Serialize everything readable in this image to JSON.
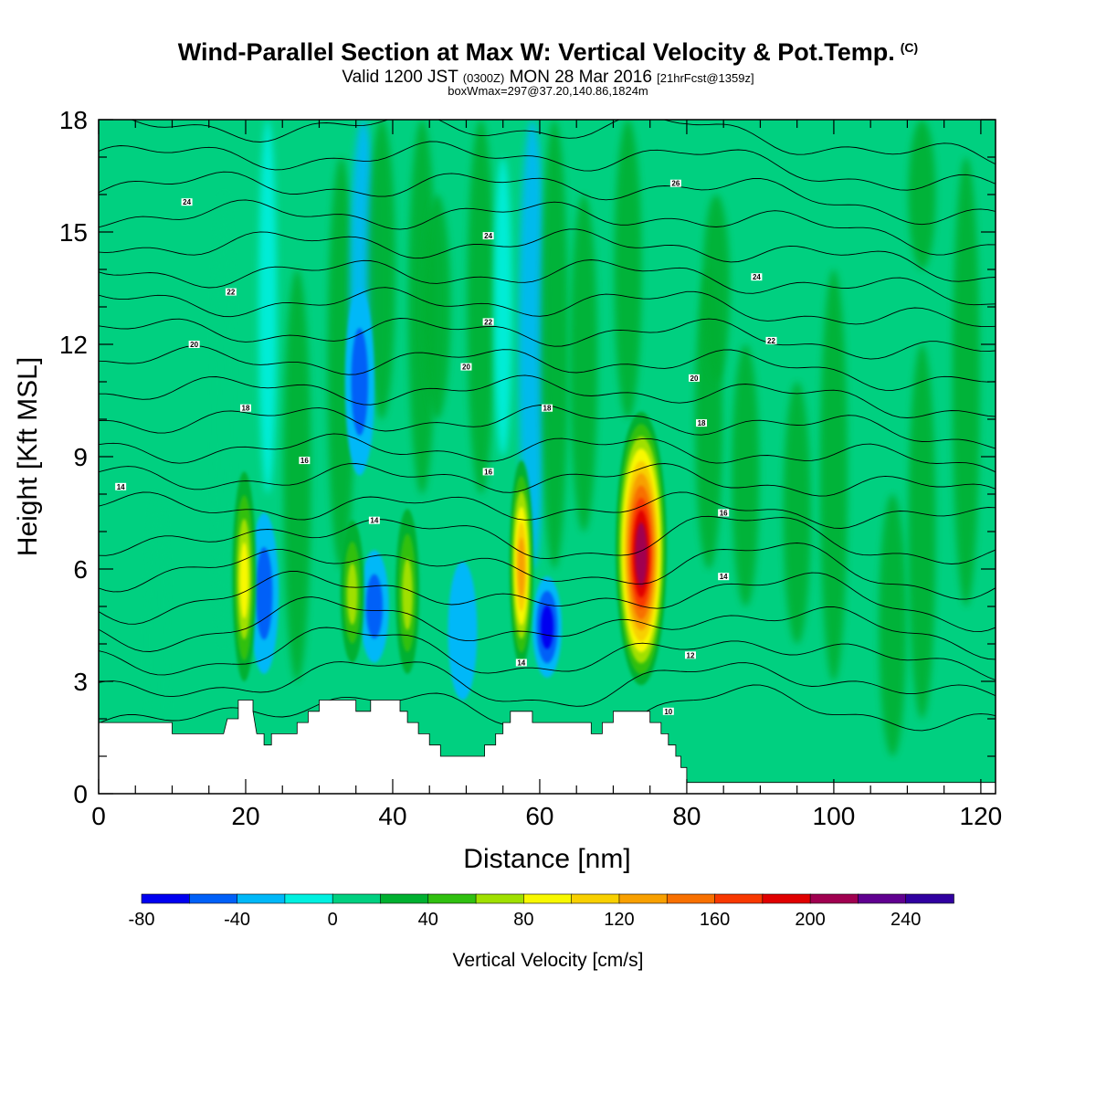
{
  "header": {
    "title": "Wind-Parallel Section at Max W: Vertical Velocity & Pot.Temp.",
    "title_mark": "(C)",
    "valid_prefix": "Valid 1200 JST",
    "valid_utc": "(0300Z)",
    "valid_date": "MON 28 Mar 2016",
    "forecast": "[21hrFcst@1359z]",
    "box_info": "boxWmax=297@37.20,140.86,1824m"
  },
  "chart_data": {
    "type": "heatmap",
    "xlabel": "Distance [nm]",
    "ylabel": "Height [Kft MSL]",
    "xlim": [
      0,
      122
    ],
    "ylim": [
      0,
      18
    ],
    "x_ticks": [
      0,
      20,
      40,
      60,
      80,
      100,
      120
    ],
    "y_ticks": [
      0,
      3,
      6,
      9,
      12,
      15,
      18
    ],
    "colorbar": {
      "label": "Vertical Velocity [cm/s]",
      "levels": [
        -80,
        -60,
        -40,
        -20,
        0,
        20,
        40,
        60,
        80,
        100,
        120,
        140,
        160,
        180,
        200,
        220,
        240,
        260
      ],
      "tick_values": [
        -80,
        -40,
        0,
        40,
        80,
        120,
        160,
        200,
        240
      ],
      "colors": [
        "#0000f0",
        "#0060f8",
        "#00b8f8",
        "#00f0e0",
        "#00d080",
        "#00b030",
        "#30c010",
        "#a0e000",
        "#f8f800",
        "#f8d000",
        "#f8a000",
        "#f87000",
        "#f83800",
        "#e00000",
        "#a00050",
        "#600090",
        "#3000a0"
      ]
    },
    "background_value": 10,
    "updrafts": [
      {
        "x": 19.8,
        "bottom": 3.0,
        "top": 8.6,
        "peak_w": 85
      },
      {
        "x": 34.5,
        "bottom": 3.5,
        "top": 7.3,
        "peak_w": 70
      },
      {
        "x": 42.0,
        "bottom": 3.2,
        "top": 7.6,
        "peak_w": 70
      },
      {
        "x": 57.5,
        "bottom": 3.4,
        "top": 8.9,
        "peak_w": 120
      },
      {
        "x": 73.8,
        "bottom": 2.9,
        "top": 10.2,
        "peak_w": 210
      }
    ],
    "downdrafts": [
      {
        "x": 22.5,
        "bottom": 3.2,
        "top": 7.5,
        "peak_w": -50
      },
      {
        "x": 35.5,
        "bottom": 8.5,
        "top": 13.5,
        "peak_w": -50
      },
      {
        "x": 37.5,
        "bottom": 3.5,
        "top": 6.5,
        "peak_w": -40
      },
      {
        "x": 49.5,
        "bottom": 2.5,
        "top": 6.2,
        "peak_w": -30
      },
      {
        "x": 61.0,
        "bottom": 3.1,
        "top": 5.8,
        "peak_w": -70
      }
    ],
    "theta_contour_labels": [
      {
        "x": 3,
        "y": 8.2,
        "text": "14"
      },
      {
        "x": 12,
        "y": 15.8,
        "text": "24"
      },
      {
        "x": 18,
        "y": 13.4,
        "text": "22"
      },
      {
        "x": 13,
        "y": 12.0,
        "text": "20"
      },
      {
        "x": 20,
        "y": 10.3,
        "text": "18"
      },
      {
        "x": 28,
        "y": 8.9,
        "text": "16"
      },
      {
        "x": 37.5,
        "y": 7.3,
        "text": "14"
      },
      {
        "x": 53,
        "y": 14.9,
        "text": "24"
      },
      {
        "x": 53,
        "y": 12.6,
        "text": "22"
      },
      {
        "x": 50,
        "y": 11.4,
        "text": "20"
      },
      {
        "x": 61,
        "y": 10.3,
        "text": "18"
      },
      {
        "x": 53,
        "y": 8.6,
        "text": "16"
      },
      {
        "x": 57.5,
        "y": 3.5,
        "text": "14"
      },
      {
        "x": 78.5,
        "y": 16.3,
        "text": "26"
      },
      {
        "x": 89.5,
        "y": 13.8,
        "text": "24"
      },
      {
        "x": 91.5,
        "y": 12.1,
        "text": "22"
      },
      {
        "x": 81,
        "y": 11.1,
        "text": "20"
      },
      {
        "x": 82,
        "y": 9.9,
        "text": "18"
      },
      {
        "x": 85,
        "y": 7.5,
        "text": "16"
      },
      {
        "x": 85,
        "y": 5.8,
        "text": "14"
      },
      {
        "x": 80.5,
        "y": 3.7,
        "text": "12"
      },
      {
        "x": 77.5,
        "y": 2.2,
        "text": "10"
      }
    ],
    "terrain_profile": [
      [
        0,
        1.9
      ],
      [
        10,
        1.9
      ],
      [
        10,
        1.6
      ],
      [
        17,
        1.6
      ],
      [
        17,
        1.6
      ],
      [
        17.5,
        2.0
      ],
      [
        19,
        2.0
      ],
      [
        19,
        2.5
      ],
      [
        21,
        2.5
      ],
      [
        21,
        2.2
      ],
      [
        21.5,
        1.6
      ],
      [
        22.5,
        1.6
      ],
      [
        22.5,
        1.3
      ],
      [
        23.5,
        1.3
      ],
      [
        23.5,
        1.6
      ],
      [
        27,
        1.6
      ],
      [
        27,
        1.9
      ],
      [
        28.5,
        1.9
      ],
      [
        28.5,
        2.2
      ],
      [
        30,
        2.2
      ],
      [
        30,
        2.5
      ],
      [
        35,
        2.5
      ],
      [
        35,
        2.2
      ],
      [
        37,
        2.2
      ],
      [
        37,
        2.5
      ],
      [
        41,
        2.5
      ],
      [
        41,
        2.2
      ],
      [
        42,
        2.2
      ],
      [
        42,
        1.9
      ],
      [
        43.5,
        1.9
      ],
      [
        43.5,
        1.6
      ],
      [
        45,
        1.6
      ],
      [
        45,
        1.3
      ],
      [
        46.5,
        1.3
      ],
      [
        46.5,
        1.0
      ],
      [
        52.5,
        1.0
      ],
      [
        52.5,
        1.3
      ],
      [
        54,
        1.3
      ],
      [
        54,
        1.6
      ],
      [
        55,
        1.6
      ],
      [
        55,
        1.9
      ],
      [
        56,
        1.9
      ],
      [
        56,
        2.2
      ],
      [
        59,
        2.2
      ],
      [
        59,
        1.9
      ],
      [
        67,
        1.9
      ],
      [
        67,
        1.6
      ],
      [
        68.5,
        1.6
      ],
      [
        68.5,
        1.9
      ],
      [
        70,
        1.9
      ],
      [
        70,
        2.2
      ],
      [
        75,
        2.2
      ],
      [
        75,
        1.9
      ],
      [
        76.5,
        1.9
      ],
      [
        76.5,
        1.6
      ],
      [
        77.5,
        1.6
      ],
      [
        77.5,
        1.3
      ],
      [
        78.5,
        1.3
      ],
      [
        78.5,
        1.0
      ],
      [
        79.2,
        1.0
      ],
      [
        79.2,
        0.7
      ],
      [
        80,
        0.7
      ],
      [
        80,
        0.3
      ],
      [
        122,
        0.3
      ]
    ]
  }
}
